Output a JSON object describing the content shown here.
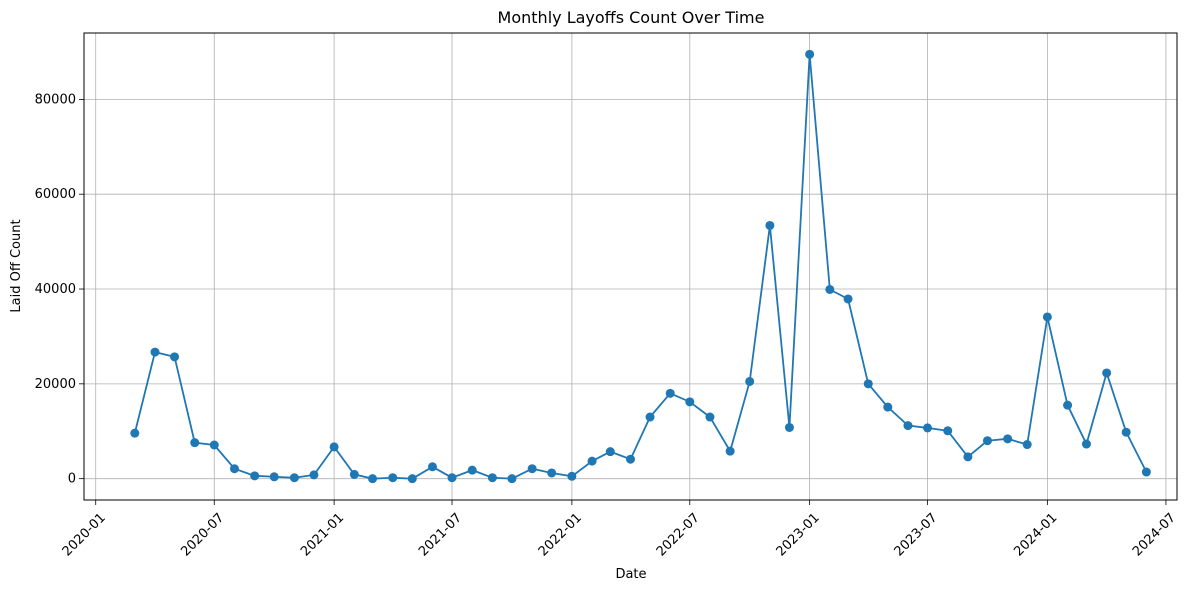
{
  "chart_data": {
    "type": "line",
    "title": "Monthly Layoffs Count Over Time",
    "xlabel": "Date",
    "ylabel": "Laid Off Count",
    "grid": true,
    "marker": "circle",
    "color": "#1f77b4",
    "xlim": [
      "2019-12-14",
      "2024-07-18"
    ],
    "ylim": [
      -4500,
      94000
    ],
    "xticks": [
      "2020-01",
      "2020-07",
      "2021-01",
      "2021-07",
      "2022-01",
      "2022-07",
      "2023-01",
      "2023-07",
      "2024-01",
      "2024-07"
    ],
    "yticks": [
      0,
      20000,
      40000,
      60000,
      80000
    ],
    "x": [
      "2020-03",
      "2020-04",
      "2020-05",
      "2020-06",
      "2020-07",
      "2020-08",
      "2020-09",
      "2020-10",
      "2020-11",
      "2020-12",
      "2021-01",
      "2021-02",
      "2021-03",
      "2021-04",
      "2021-05",
      "2021-06",
      "2021-07",
      "2021-08",
      "2021-09",
      "2021-10",
      "2021-11",
      "2021-12",
      "2022-01",
      "2022-02",
      "2022-03",
      "2022-04",
      "2022-05",
      "2022-06",
      "2022-07",
      "2022-08",
      "2022-09",
      "2022-10",
      "2022-11",
      "2022-12",
      "2023-01",
      "2023-02",
      "2023-03",
      "2023-04",
      "2023-05",
      "2023-06",
      "2023-07",
      "2023-08",
      "2023-09",
      "2023-10",
      "2023-11",
      "2023-12",
      "2024-01",
      "2024-02",
      "2024-03",
      "2024-04",
      "2024-05",
      "2024-06"
    ],
    "y": [
      9600,
      26700,
      25700,
      7600,
      7100,
      2100,
      600,
      400,
      200,
      800,
      6700,
      900,
      0,
      200,
      0,
      2500,
      200,
      1800,
      200,
      0,
      2100,
      1200,
      500,
      3700,
      5700,
      4100,
      13000,
      18000,
      16200,
      13000,
      5800,
      20500,
      53400,
      10800,
      89500,
      39900,
      37900,
      20000,
      15100,
      11200,
      10700,
      10100,
      4600,
      8000,
      8400,
      7200,
      34100,
      15500,
      7300,
      22300,
      9800,
      1400
    ]
  }
}
